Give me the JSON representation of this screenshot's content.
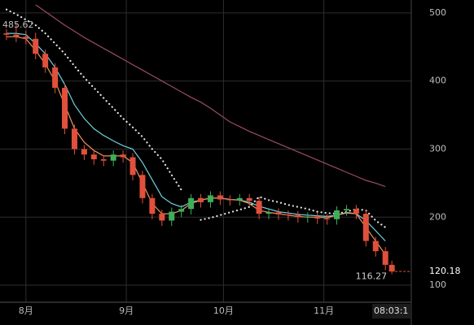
{
  "chart_data": {
    "type": "candlestick",
    "x": [
      -6,
      -3,
      0,
      3,
      6,
      9,
      12,
      15,
      18,
      21,
      24,
      27,
      30,
      33,
      36,
      39,
      42,
      45,
      48,
      51,
      54,
      57,
      60,
      63,
      66,
      69,
      72,
      75,
      78,
      81,
      84,
      87,
      90,
      93,
      96,
      99,
      102,
      105,
      108,
      111,
      113
    ],
    "open": [
      470,
      468,
      465,
      462,
      440,
      420,
      390,
      330,
      300,
      292,
      285,
      283,
      292,
      288,
      262,
      228,
      205,
      195,
      208,
      212,
      228,
      222,
      232,
      226,
      225,
      228,
      224,
      205,
      207,
      204,
      203,
      200,
      201,
      198,
      197,
      210,
      212,
      205,
      165,
      150,
      130
    ],
    "high": [
      476,
      485.62,
      474,
      471,
      446,
      426,
      396,
      336,
      306,
      298,
      291,
      298,
      298,
      294,
      268,
      234,
      211,
      214,
      218,
      234,
      234,
      238,
      238,
      232,
      234,
      234,
      230,
      213,
      213,
      210,
      209,
      207,
      207,
      204,
      216,
      218,
      218,
      211,
      171,
      156,
      136
    ],
    "low": [
      460,
      457,
      454,
      432,
      412,
      382,
      322,
      292,
      284,
      277,
      275,
      275,
      280,
      254,
      220,
      197,
      187,
      187,
      200,
      204,
      214,
      214,
      218,
      217,
      217,
      216,
      197,
      197,
      196,
      195,
      192,
      192,
      190,
      189,
      189,
      202,
      197,
      157,
      142,
      122,
      116.27
    ],
    "close": [
      468,
      465,
      462,
      440,
      420,
      390,
      330,
      300,
      292,
      285,
      283,
      292,
      288,
      262,
      228,
      205,
      195,
      208,
      212,
      228,
      222,
      232,
      226,
      225,
      228,
      224,
      205,
      207,
      204,
      203,
      200,
      201,
      198,
      197,
      210,
      212,
      205,
      165,
      150,
      130,
      120.18
    ],
    "up_color": "#3fae5a",
    "down_color": "#e0503c",
    "series": [
      {
        "color": "#9b4a6e",
        "dotted": false,
        "values": [
          null,
          null,
          null,
          512,
          502,
          492,
          482,
          473,
          464,
          456,
          448,
          440,
          432,
          424,
          416,
          408,
          400,
          392,
          384,
          376,
          369,
          360,
          350,
          340,
          333,
          326,
          320,
          314,
          308,
          302,
          296,
          290,
          284,
          278,
          272,
          266,
          260,
          254,
          250,
          245,
          null
        ]
      },
      {
        "color": "#e6e6e6",
        "dotted": true,
        "values": [
          505,
          498,
          490,
          482,
          470,
          455,
          440,
          422,
          405,
          390,
          375,
          360,
          345,
          332,
          318,
          300,
          285,
          262,
          240,
          null,
          196,
          199,
          203,
          207,
          211,
          215,
          230,
          225,
          222,
          218,
          215,
          212,
          208,
          206,
          205,
          208,
          212,
          210,
          195,
          185,
          null
        ]
      },
      {
        "color": "#6fd3e0",
        "dotted": false,
        "values": [
          470,
          470,
          468,
          455,
          440,
          420,
          395,
          365,
          345,
          330,
          320,
          312,
          305,
          300,
          280,
          255,
          230,
          220,
          215,
          222,
          225,
          228,
          228,
          226,
          225,
          222,
          216,
          212,
          208,
          206,
          204,
          203,
          202,
          201,
          203,
          206,
          205,
          195,
          180,
          165,
          null
        ]
      },
      {
        "color": "#f0935a",
        "dotted": false,
        "values": [
          465,
          465,
          462,
          445,
          425,
          400,
          365,
          330,
          310,
          298,
          290,
          290,
          290,
          280,
          250,
          220,
          205,
          205,
          210,
          220,
          225,
          228,
          228,
          226,
          225,
          220,
          210,
          207,
          205,
          203,
          201,
          200,
          200,
          199,
          203,
          207,
          205,
          185,
          165,
          145,
          null
        ]
      }
    ],
    "xlim": [
      -8,
      119
    ],
    "xticks": [
      {
        "value": 0,
        "label": "8月"
      },
      {
        "value": 31,
        "label": "9月"
      },
      {
        "value": 61,
        "label": "10月"
      },
      {
        "value": 92,
        "label": "11月"
      }
    ],
    "ylim": [
      75,
      519
    ],
    "yticks": [
      100,
      200,
      300,
      400,
      500
    ],
    "grid": true,
    "time_label": "08:03:1"
  }
}
